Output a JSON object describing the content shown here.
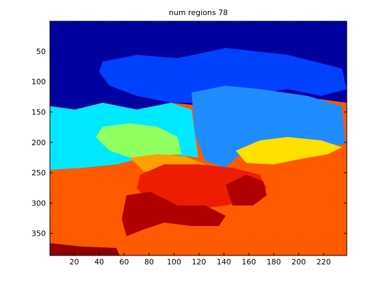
{
  "chart_data": {
    "type": "image",
    "title": "num regions 78",
    "xlim": [
      0.5,
      238.5
    ],
    "ylim": [
      0.5,
      386.5
    ],
    "y_reversed": true,
    "xticks": [
      20,
      40,
      60,
      80,
      100,
      120,
      140,
      160,
      180,
      200,
      220
    ],
    "yticks": [
      50,
      100,
      150,
      200,
      250,
      300,
      350
    ]
  }
}
